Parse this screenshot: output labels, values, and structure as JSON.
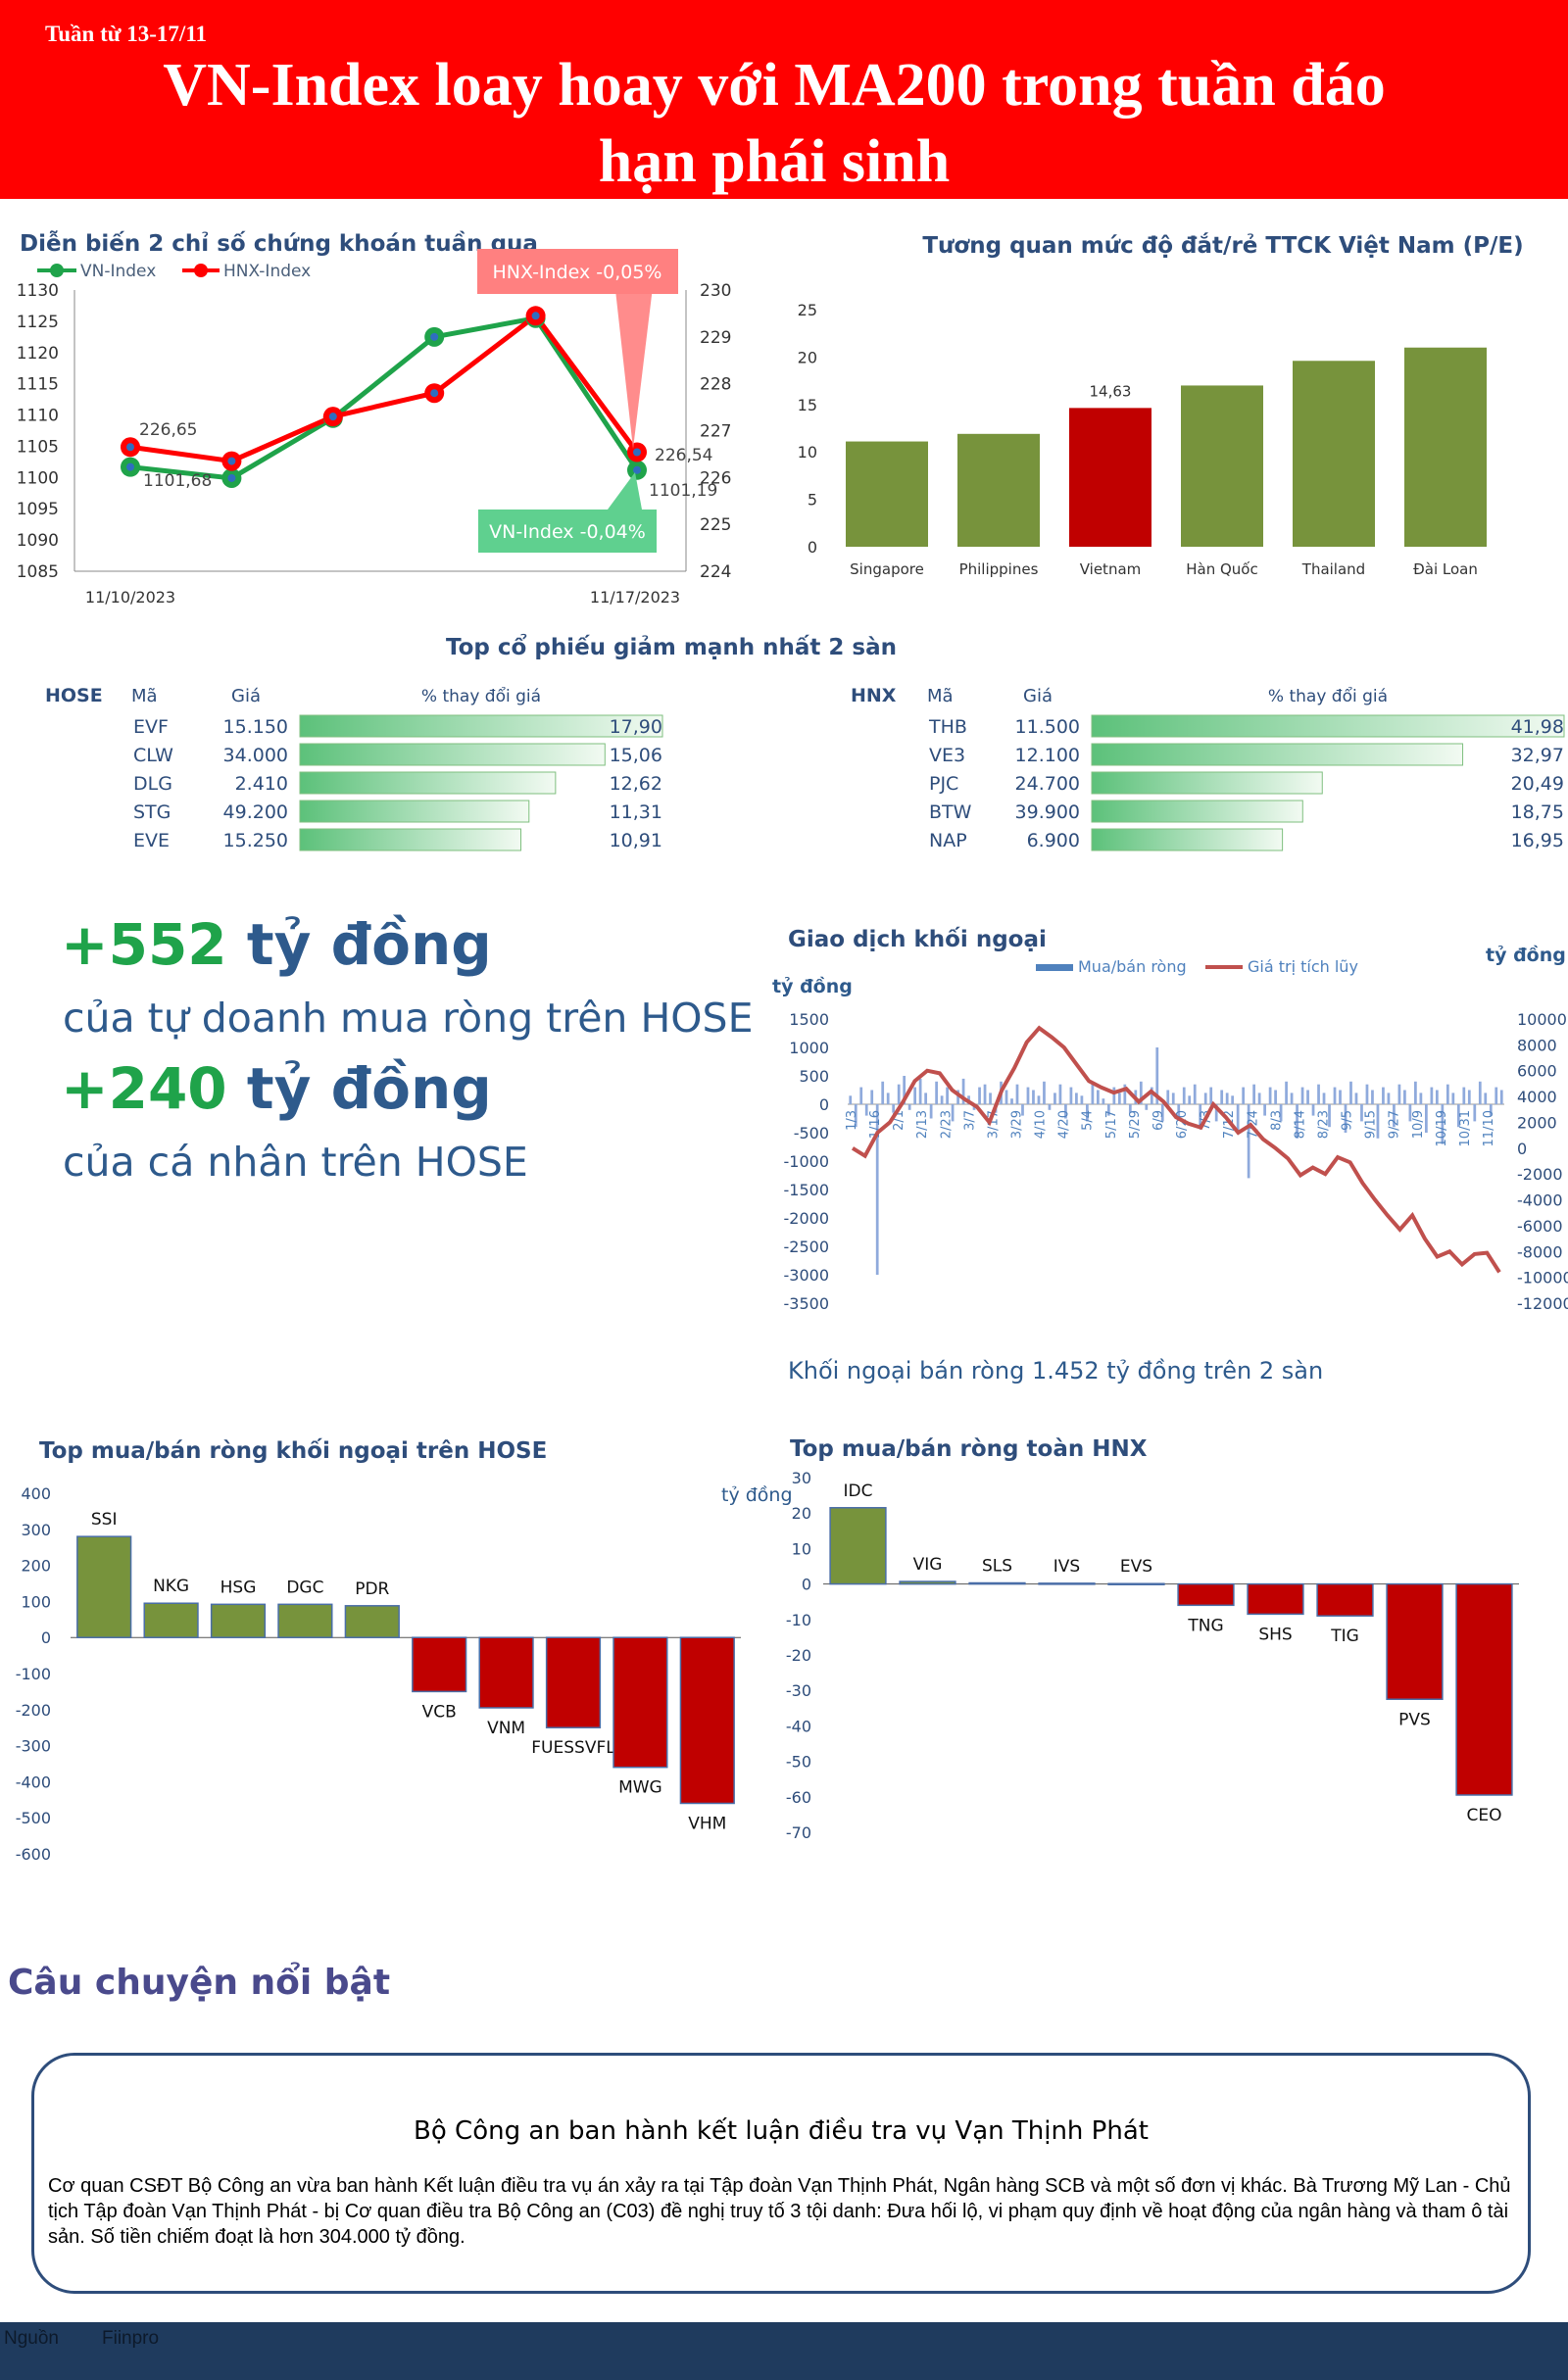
{
  "header": {
    "week_label": "Tuần từ 13-17/11",
    "title_line1": "VN-Index loay hoay với MA200 trong tuần đáo",
    "title_line2": "hạn phái sinh"
  },
  "colors": {
    "header_red": "#ff0000",
    "bar_green": "#77933c",
    "bar_red": "#c00000",
    "line_green": "#1fa34a",
    "line_red": "#ff0000",
    "navy": "#1f3b5e",
    "accent_green": "#1fa34a"
  },
  "index_chart": {
    "title": "Diễn biến 2 chỉ số chứng khoán tuần qua",
    "legend": [
      "VN-Index",
      "HNX-Index"
    ],
    "left_ticks": [
      "1130",
      "1125",
      "1120",
      "1115",
      "1110",
      "1105",
      "1100",
      "1095",
      "1090",
      "1085"
    ],
    "right_ticks": [
      "230",
      "229",
      "228",
      "227",
      "226",
      "225",
      "224"
    ],
    "x_labels": [
      "11/10/2023",
      "11/17/2023"
    ],
    "labels": {
      "vn_start": "1101,68",
      "vn_end": "1101,19",
      "hnx_start": "226,65",
      "hnx_end": "226,54"
    },
    "callout_hnx": "HNX-Index -0,05%",
    "callout_vn": "VN-Index -0,04%"
  },
  "pe_chart": {
    "title": "Tương quan mức độ đắt/rẻ TTCK Việt Nam (P/E)",
    "value_label": "14,63",
    "ticks": [
      "25",
      "20",
      "15",
      "10",
      "5",
      "0"
    ]
  },
  "top_decline": {
    "title": "Top cổ phiếu giảm mạnh nhất 2 sàn",
    "hose": {
      "exchange": "HOSE",
      "col_code": "Mã",
      "col_price": "Giá",
      "col_change": "% thay đổi giá",
      "rows": [
        {
          "code": "EVF",
          "price": "15.150",
          "change": "17,90",
          "value": 17.9
        },
        {
          "code": "CLW",
          "price": "34.000",
          "change": "15,06",
          "value": 15.06
        },
        {
          "code": "DLG",
          "price": "2.410",
          "change": "12,62",
          "value": 12.62
        },
        {
          "code": "STG",
          "price": "49.200",
          "change": "11,31",
          "value": 11.31
        },
        {
          "code": "EVE",
          "price": "15.250",
          "change": "10,91",
          "value": 10.91
        }
      ]
    },
    "hnx": {
      "exchange": "HNX",
      "col_code": "Mã",
      "col_price": "Giá",
      "col_change": "% thay đổi giá",
      "rows": [
        {
          "code": "THB",
          "price": "11.500",
          "change": "41,98",
          "value": 41.98
        },
        {
          "code": "VE3",
          "price": "12.100",
          "change": "32,97",
          "value": 32.97
        },
        {
          "code": "PJC",
          "price": "24.700",
          "change": "20,49",
          "value": 20.49
        },
        {
          "code": "BTW",
          "price": "39.900",
          "change": "18,75",
          "value": 18.75
        },
        {
          "code": "NAP",
          "price": "6.900",
          "change": "16,95",
          "value": 16.95
        }
      ]
    }
  },
  "highlights": {
    "fig1_num": "+552",
    "fig1_unit": "tỷ đồng",
    "fig1_desc": "của tự doanh mua ròng trên HOSE",
    "fig2_num": "+240",
    "fig2_unit": "tỷ đồng",
    "fig2_desc": "của cá nhân trên HOSE"
  },
  "foreign_chart": {
    "title": "Giao dịch khối ngoại",
    "unit_left": "tỷ đồng",
    "unit_right": "tỷ đồng",
    "legend_bar": "Mua/bán ròng",
    "legend_line": "Giá trị tích lũy",
    "left_ticks": [
      "1500",
      "1000",
      "500",
      "0",
      "-500",
      "-1000",
      "-1500",
      "-2000",
      "-2500",
      "-3000",
      "-3500"
    ],
    "right_ticks": [
      "10000",
      "8000",
      "6000",
      "4000",
      "2000",
      "0",
      "-2000",
      "-4000",
      "-6000",
      "-8000",
      "-10000",
      "-12000"
    ],
    "date_labels": [
      "1/3",
      "1/16",
      "2/1",
      "2/13",
      "2/23",
      "3/7",
      "3/17",
      "3/29",
      "4/10",
      "4/20",
      "5/4",
      "5/17",
      "5/29",
      "6/9",
      "6/20",
      "7/3",
      "7/12",
      "7/24",
      "8/3",
      "8/14",
      "8/23",
      "9/5",
      "9/15",
      "9/27",
      "10/9",
      "10/19",
      "10/31",
      "11/10"
    ],
    "caption": "Khối ngoại bán ròng 1.452 tỷ đồng trên 2 sàn"
  },
  "hose_foreign": {
    "title": "Top mua/bán ròng khối ngoại trên HOSE",
    "unit": "tỷ đồng",
    "ticks": [
      "400",
      "300",
      "200",
      "100",
      "0",
      "-100",
      "-200",
      "-300",
      "-400",
      "-500",
      "-600"
    ]
  },
  "hnx_foreign": {
    "title": "Top mua/bán ròng toàn HNX",
    "ticks": [
      "30",
      "20",
      "10",
      "0",
      "-10",
      "-20",
      "-30",
      "-40",
      "-50",
      "-60",
      "-70"
    ]
  },
  "story": {
    "section_title": "Câu chuyện nổi bật",
    "title": "Bộ Công an ban hành kết luận điều tra vụ Vạn Thịnh Phát",
    "body": "Cơ quan CSĐT Bộ Công an vừa ban hành Kết luận điều tra vụ án xảy ra tại Tập đoàn Vạn Thịnh Phát, Ngân hàng SCB và một số đơn vị khác. Bà Trương Mỹ Lan - Chủ tịch Tập đoàn Vạn Thịnh Phát - bị Cơ quan điều tra Bộ Công an (C03) đề nghị truy tố 3 tội danh: Đưa hối lộ, vi phạm quy định về hoạt động của ngân hàng và tham ô tài sản. Số tiền chiếm đoạt là hơn 304.000 tỷ đồng."
  },
  "footer": {
    "source_label": "Nguồn",
    "source": "Fiinpro"
  },
  "chart_data": [
    {
      "type": "line",
      "title": "Diễn biến 2 chỉ số chứng khoán tuần qua",
      "x": [
        "11/10/2023",
        "11/13/2023",
        "11/14/2023",
        "11/15/2023",
        "11/16/2023",
        "11/17/2023"
      ],
      "series": [
        {
          "name": "VN-Index",
          "axis": "left",
          "values": [
            1101.68,
            1099.9,
            1109.5,
            1122.5,
            1125.5,
            1101.19
          ]
        },
        {
          "name": "HNX-Index",
          "axis": "right",
          "values": [
            226.65,
            226.35,
            227.3,
            227.8,
            229.45,
            226.54
          ]
        }
      ],
      "ylim_left": [
        1085,
        1130
      ],
      "ylim_right": [
        224,
        230
      ],
      "legend": "top-left"
    },
    {
      "type": "bar",
      "title": "Tương quan mức độ đắt/rẻ TTCK Việt Nam (P/E)",
      "categories": [
        "Singapore",
        "Philippines",
        "Vietnam",
        "Hàn Quốc",
        "Thailand",
        "Đài Loan"
      ],
      "values": [
        11.1,
        11.9,
        14.63,
        17.0,
        19.6,
        21.0
      ],
      "highlight": "Vietnam",
      "ylim": [
        0,
        25
      ]
    },
    {
      "type": "bar",
      "title": "Top cổ phiếu giảm mạnh nhất 2 sàn - HOSE",
      "categories": [
        "EVF",
        "CLW",
        "DLG",
        "STG",
        "EVE"
      ],
      "values": [
        17.9,
        15.06,
        12.62,
        11.31,
        10.91
      ]
    },
    {
      "type": "bar",
      "title": "Top cổ phiếu giảm mạnh nhất 2 sàn - HNX",
      "categories": [
        "THB",
        "VE3",
        "PJC",
        "BTW",
        "NAP"
      ],
      "values": [
        41.98,
        32.97,
        20.49,
        18.75,
        16.95
      ]
    },
    {
      "type": "line",
      "title": "Giao dịch khối ngoại",
      "series": [
        {
          "name": "Mua/bán ròng",
          "axis": "left",
          "kind": "bar",
          "values": [
            150,
            -400,
            300,
            -200,
            250,
            -3000,
            400,
            200,
            -150,
            350,
            500,
            -100,
            300,
            450,
            200,
            -250,
            400,
            150,
            300,
            -300,
            250,
            450,
            150,
            -100,
            300,
            350,
            200,
            -150,
            400,
            250,
            100,
            350,
            -200,
            300,
            250,
            150,
            400,
            -100,
            200,
            350,
            -250,
            300,
            200,
            150,
            -300,
            400,
            250,
            100,
            -200,
            300,
            200,
            350,
            -150,
            250,
            400,
            -100,
            300,
            1000,
            -300,
            250,
            200,
            -250,
            300,
            150,
            350,
            -400,
            200,
            300,
            -300,
            250,
            200,
            150,
            -500,
            300,
            -1300,
            350,
            200,
            -200,
            300,
            250,
            -300,
            400,
            200,
            -600,
            300,
            250,
            -200,
            350,
            200,
            -400,
            300,
            250,
            -500,
            400,
            200,
            -300,
            350,
            250,
            -600,
            300,
            200,
            -400,
            350,
            250,
            -300,
            400,
            200,
            -500,
            300,
            250,
            -700,
            350,
            200,
            -400,
            300,
            250,
            -300,
            400,
            200,
            -200,
            300,
            250
          ]
        },
        {
          "name": "Giá trị tích lũy",
          "axis": "right",
          "kind": "line",
          "values": [
            0,
            -600,
            1200,
            2000,
            3500,
            5200,
            6000,
            5800,
            4500,
            3800,
            3200,
            2000,
            4500,
            6200,
            8200,
            9300,
            8600,
            7800,
            6500,
            5200,
            4700,
            4300,
            4600,
            3600,
            4400,
            3600,
            2400,
            1900,
            1600,
            3400,
            2400,
            1200,
            1800,
            700,
            0,
            -800,
            -2100,
            -1500,
            -2000,
            -700,
            -1100,
            -2700,
            -4000,
            -5200,
            -6300,
            -5200,
            -7000,
            -8400,
            -8000,
            -9000,
            -8200,
            -8100,
            -9600
          ]
        }
      ],
      "ylim_left": [
        -3500,
        1500
      ],
      "ylim_right": [
        -12000,
        10000
      ]
    },
    {
      "type": "bar",
      "title": "Top mua/bán ròng khối ngoại trên HOSE",
      "categories": [
        "SSI",
        "NKG",
        "HSG",
        "DGC",
        "PDR",
        "VCB",
        "VNM",
        "FUESSVFL",
        "MWG",
        "VHM"
      ],
      "values": [
        280,
        95,
        92,
        92,
        88,
        -150,
        -195,
        -250,
        -360,
        -460
      ],
      "ylim": [
        -600,
        400
      ]
    },
    {
      "type": "bar",
      "title": "Top mua/bán ròng toàn HNX",
      "categories": [
        "IDC",
        "VIG",
        "SLS",
        "IVS",
        "EVS",
        "TNG",
        "SHS",
        "TIG",
        "PVS",
        "CEO"
      ],
      "values": [
        21.5,
        0.7,
        0.3,
        0.2,
        0.1,
        -6.0,
        -8.5,
        -9.0,
        -32.5,
        -59.5
      ],
      "ylim": [
        -70,
        30
      ]
    }
  ]
}
